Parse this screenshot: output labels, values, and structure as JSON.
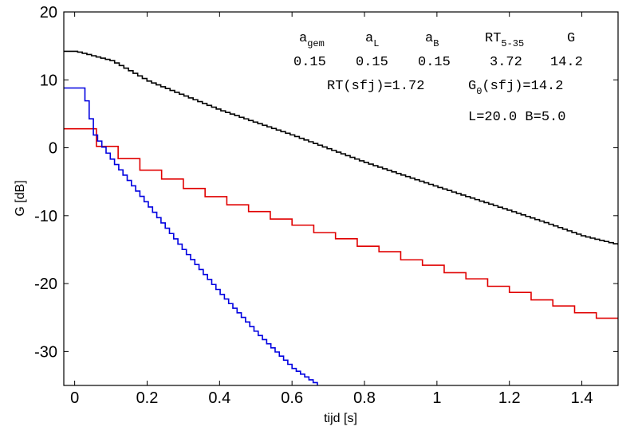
{
  "chart_data": {
    "type": "line",
    "xlabel": "tijd  [s]",
    "ylabel": "G  [dB]",
    "xlim": [
      -0.03,
      1.5
    ],
    "ylim": [
      -35,
      20
    ],
    "xticks": [
      0,
      0.2,
      0.4,
      0.6,
      0.8,
      1,
      1.2,
      1.4
    ],
    "xtick_labels": [
      "0",
      "0.2",
      "0.4",
      "0.6",
      "0.8",
      "1",
      "1.2",
      "1.4"
    ],
    "yticks": [
      20,
      10,
      0,
      -10,
      -20,
      -30
    ],
    "ytick_labels": [
      "20",
      "10",
      "0",
      "-10",
      "-20",
      "-30"
    ],
    "grid": false,
    "legend": "none",
    "series": [
      {
        "color": "#000000",
        "style": "stepped-decay",
        "step_count": 120,
        "points": [
          [
            -0.03,
            14.2
          ],
          [
            0.0,
            14.2
          ],
          [
            0.1,
            12.8
          ],
          [
            0.2,
            9.8
          ],
          [
            0.4,
            5.5
          ],
          [
            0.6,
            1.8
          ],
          [
            0.8,
            -2.2
          ],
          [
            1.0,
            -5.8
          ],
          [
            1.2,
            -9.3
          ],
          [
            1.3,
            -11.1
          ],
          [
            1.4,
            -13.0
          ],
          [
            1.5,
            -14.3
          ]
        ]
      },
      {
        "color": "#e00000",
        "style": "stepped",
        "steps": [
          [
            -0.03,
            2.8
          ],
          [
            0.06,
            0.2
          ],
          [
            0.12,
            -1.6
          ],
          [
            0.18,
            -3.3
          ],
          [
            0.24,
            -4.6
          ],
          [
            0.3,
            -6.0
          ],
          [
            0.36,
            -7.2
          ],
          [
            0.42,
            -8.4
          ],
          [
            0.48,
            -9.4
          ],
          [
            0.54,
            -10.5
          ],
          [
            0.6,
            -11.4
          ],
          [
            0.66,
            -12.5
          ],
          [
            0.72,
            -13.4
          ],
          [
            0.78,
            -14.5
          ],
          [
            0.84,
            -15.3
          ],
          [
            0.9,
            -16.5
          ],
          [
            0.96,
            -17.3
          ],
          [
            1.02,
            -18.4
          ],
          [
            1.08,
            -19.3
          ],
          [
            1.14,
            -20.4
          ],
          [
            1.2,
            -21.3
          ],
          [
            1.26,
            -22.4
          ],
          [
            1.32,
            -23.3
          ],
          [
            1.38,
            -24.3
          ],
          [
            1.44,
            -25.1
          ],
          [
            1.5,
            -25.1
          ]
        ]
      },
      {
        "color": "#0000e0",
        "style": "stepped-decay",
        "step_count": 60,
        "points": [
          [
            -0.03,
            8.8
          ],
          [
            0.02,
            8.8
          ],
          [
            0.05,
            2.0
          ],
          [
            0.1,
            -1.8
          ],
          [
            0.2,
            -8.5
          ],
          [
            0.3,
            -15.2
          ],
          [
            0.4,
            -21.5
          ],
          [
            0.5,
            -27.3
          ],
          [
            0.6,
            -32.5
          ],
          [
            0.67,
            -35.0
          ]
        ]
      }
    ],
    "annotation": {
      "headers": [
        {
          "base": "a",
          "sub": "gem"
        },
        {
          "base": "a",
          "sub": "L"
        },
        {
          "base": "a",
          "sub": "B"
        },
        {
          "base": "RT",
          "sub": "5-35"
        },
        {
          "base": "G",
          "sub": ""
        }
      ],
      "values": [
        "0.15",
        "0.15",
        "0.15",
        "3.72",
        "14.2"
      ],
      "rt_sfj": "RT(sfj)=1.72",
      "g0_base": "G",
      "g0_sub": "0",
      "g0_rest": "(sfj)=14.2",
      "dimensions": "L=20.0 B=5.0"
    }
  }
}
